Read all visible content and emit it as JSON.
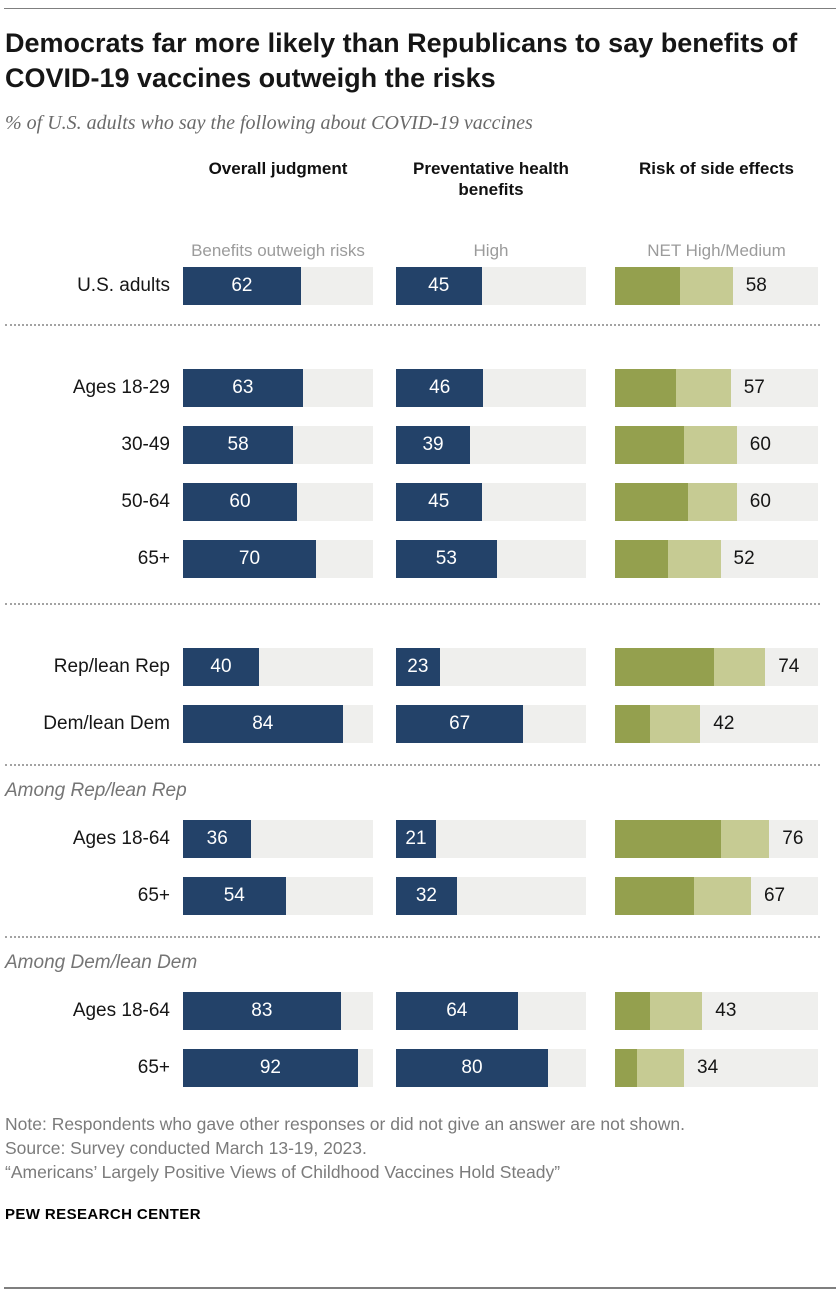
{
  "header": {
    "title": "Democrats far more likely than Republicans to say benefits of COVID-19 vaccines outweigh the risks",
    "subtitle": "% of U.S. adults who say the following about COVID-19 vaccines"
  },
  "sections": {
    "rep": "Among Rep/lean Rep",
    "dem": "Among Dem/lean Dem"
  },
  "footer": {
    "note": "Note: Respondents who gave other responses or did not give an answer are not shown.",
    "source": "Source: Survey conducted March 13-19, 2023.",
    "report": "“Americans’ Largely Positive Views of Childhood Vaccines Hold Steady”",
    "brand": "PEW RESEARCH CENTER"
  },
  "chart_data": {
    "type": "bar",
    "title": "Democrats far more likely than Republicans to say benefits of COVID-19 vaccines outweigh the risks",
    "subtitle": "% of U.S. adults who say the following about COVID-19 vaccines",
    "unit": "%",
    "axis_range": [
      0,
      100
    ],
    "grid": false,
    "legend_position": "column-subheaders",
    "columns": [
      {
        "label": "Overall judgment",
        "sublabel": "Benefits outweigh risks",
        "style": "single-navy-bar"
      },
      {
        "label": "Preventative health benefits",
        "sublabel": "High",
        "style": "single-navy-bar"
      },
      {
        "label": "Risk of side effects",
        "sublabel": "NET High/Medium",
        "style": "stacked-olive-bar",
        "note": "segment split High vs Medium estimated from bar pixels; only NET value labeled"
      }
    ],
    "colors": {
      "navy_bar": "#234269",
      "risk_high_segment": "#94A04E",
      "risk_medium_segment": "#C6CB93",
      "bar_track": "#EFEFED",
      "value_label_on_bar": "#FFFFFF",
      "net_label": "#161616"
    },
    "rows": [
      {
        "label": "U.S. adults",
        "group": "all",
        "overall": 62,
        "preventative": 45,
        "risk_net": 58,
        "risk_high": 32,
        "risk_medium": 26
      },
      {
        "label": "Ages 18-29",
        "group": "age",
        "overall": 63,
        "preventative": 46,
        "risk_net": 57,
        "risk_high": 30,
        "risk_medium": 27
      },
      {
        "label": "30-49",
        "group": "age",
        "overall": 58,
        "preventative": 39,
        "risk_net": 60,
        "risk_high": 34,
        "risk_medium": 26
      },
      {
        "label": "50-64",
        "group": "age",
        "overall": 60,
        "preventative": 45,
        "risk_net": 60,
        "risk_high": 36,
        "risk_medium": 24
      },
      {
        "label": "65+",
        "group": "age",
        "overall": 70,
        "preventative": 53,
        "risk_net": 52,
        "risk_high": 26,
        "risk_medium": 26
      },
      {
        "label": "Rep/lean Rep",
        "group": "party",
        "overall": 40,
        "preventative": 23,
        "risk_net": 74,
        "risk_high": 49,
        "risk_medium": 25
      },
      {
        "label": "Dem/lean Dem",
        "group": "party",
        "overall": 84,
        "preventative": 67,
        "risk_net": 42,
        "risk_high": 17,
        "risk_medium": 25
      },
      {
        "label": "Ages 18-64",
        "group": "among-rep",
        "overall": 36,
        "preventative": 21,
        "risk_net": 76,
        "risk_high": 52,
        "risk_medium": 24
      },
      {
        "label": "65+",
        "group": "among-rep",
        "overall": 54,
        "preventative": 32,
        "risk_net": 67,
        "risk_high": 39,
        "risk_medium": 28
      },
      {
        "label": "Ages 18-64",
        "group": "among-dem",
        "overall": 83,
        "preventative": 64,
        "risk_net": 43,
        "risk_high": 17,
        "risk_medium": 26
      },
      {
        "label": "65+",
        "group": "among-dem",
        "overall": 92,
        "preventative": 80,
        "risk_net": 34,
        "risk_high": 11,
        "risk_medium": 23
      }
    ]
  }
}
